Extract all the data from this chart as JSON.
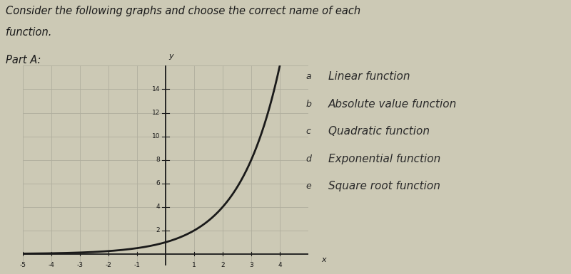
{
  "title_line1": "Consider the following graphs and choose the correct name of each",
  "title_line2": "function.",
  "part_label": "Part A:",
  "x_min": -5,
  "x_max": 5,
  "y_min": -1,
  "y_max": 16,
  "curve_color": "#1a1a1a",
  "bg_color": "#ccc9b5",
  "grid_color": "#b0ae9e",
  "choices": [
    {
      "label": "A",
      "text": "Linear function"
    },
    {
      "label": "B",
      "text": "Absolute value function"
    },
    {
      "label": "C",
      "text": "Quadratic function"
    },
    {
      "label": "D",
      "text": "Exponential function"
    },
    {
      "label": "E",
      "text": "Square root function"
    }
  ],
  "choice_text_color": "#2a2a2a",
  "axis_color": "#1a1a1a",
  "title_color": "#1a1a1a",
  "title_fontsize": 10.5,
  "part_fontsize": 10.5,
  "choice_fontsize": 11,
  "tick_fontsize": 6.5
}
